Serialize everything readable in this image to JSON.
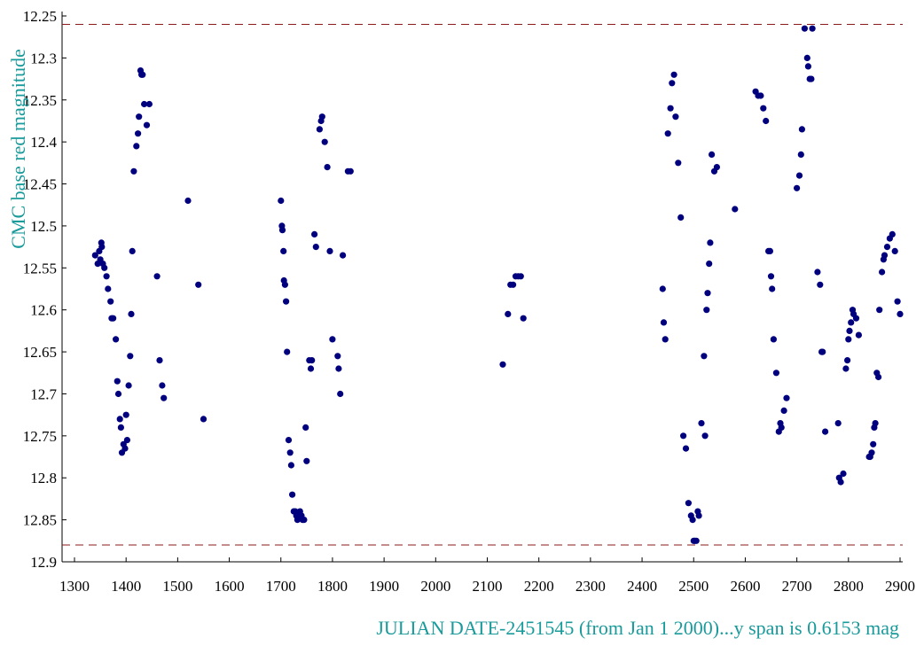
{
  "chart_data": {
    "type": "scatter",
    "title": "",
    "xlabel": "JULIAN DATE-2451545 (from Jan 1 2000)...y span is 0.6153 mag",
    "ylabel": "CMC base red magnitude",
    "xlim": [
      1300,
      2900
    ],
    "ylim": [
      12.25,
      12.9
    ],
    "y_inverted": true,
    "grid": false,
    "legend": "none",
    "x_ticks": [
      "1300",
      "1400",
      "1500",
      "1600",
      "1700",
      "1800",
      "1900",
      "2000",
      "2100",
      "2200",
      "2300",
      "2400",
      "2500",
      "2600",
      "2700",
      "2800",
      "2900"
    ],
    "y_ticks": [
      "12.25",
      "12.3",
      "12.35",
      "12.4",
      "12.45",
      "12.5",
      "12.55",
      "12.6",
      "12.65",
      "12.7",
      "12.75",
      "12.8",
      "12.85",
      "12.9"
    ],
    "reference_lines": [
      12.26,
      12.88
    ],
    "point_color": "#00007f",
    "ref_color": "#8b1a1a",
    "label_color": "#1a9a9a",
    "x": [
      1340,
      1345,
      1348,
      1350,
      1352,
      1353,
      1355,
      1358,
      1362,
      1365,
      1370,
      1372,
      1375,
      1380,
      1383,
      1385,
      1388,
      1390,
      1392,
      1395,
      1398,
      1400,
      1402,
      1405,
      1408,
      1410,
      1412,
      1415,
      1420,
      1423,
      1425,
      1428,
      1430,
      1432,
      1435,
      1440,
      1445,
      1460,
      1465,
      1470,
      1473,
      1520,
      1540,
      1550,
      1700,
      1702,
      1703,
      1705,
      1706,
      1708,
      1710,
      1712,
      1715,
      1718,
      1720,
      1722,
      1725,
      1728,
      1730,
      1732,
      1735,
      1737,
      1740,
      1742,
      1745,
      1748,
      1750,
      1755,
      1758,
      1760,
      1765,
      1768,
      1775,
      1778,
      1780,
      1785,
      1790,
      1795,
      1800,
      1810,
      1812,
      1815,
      1820,
      1830,
      1835,
      2130,
      2140,
      2145,
      2150,
      2155,
      2160,
      2165,
      2170,
      2440,
      2442,
      2445,
      2450,
      2455,
      2458,
      2462,
      2465,
      2470,
      2475,
      2480,
      2485,
      2490,
      2495,
      2498,
      2500,
      2502,
      2505,
      2508,
      2510,
      2515,
      2520,
      2522,
      2525,
      2527,
      2530,
      2532,
      2535,
      2540,
      2545,
      2580,
      2620,
      2625,
      2630,
      2635,
      2640,
      2645,
      2648,
      2650,
      2652,
      2655,
      2660,
      2665,
      2668,
      2670,
      2675,
      2680,
      2700,
      2705,
      2708,
      2710,
      2715,
      2720,
      2722,
      2725,
      2728,
      2730,
      2740,
      2745,
      2748,
      2750,
      2755,
      2780,
      2782,
      2785,
      2790,
      2795,
      2798,
      2800,
      2802,
      2805,
      2808,
      2810,
      2815,
      2820,
      2840,
      2842,
      2845,
      2848,
      2850,
      2852,
      2855,
      2858,
      2860,
      2865,
      2868,
      2870,
      2875,
      2880,
      2885,
      2890,
      2895,
      2900
    ],
    "y": [
      12.535,
      12.545,
      12.53,
      12.54,
      12.52,
      12.525,
      12.545,
      12.55,
      12.56,
      12.575,
      12.59,
      12.61,
      12.61,
      12.635,
      12.685,
      12.7,
      12.73,
      12.74,
      12.77,
      12.76,
      12.765,
      12.725,
      12.755,
      12.69,
      12.655,
      12.605,
      12.53,
      12.435,
      12.405,
      12.39,
      12.37,
      12.315,
      12.32,
      12.32,
      12.355,
      12.38,
      12.355,
      12.56,
      12.66,
      12.69,
      12.705,
      12.47,
      12.57,
      12.73,
      12.47,
      12.5,
      12.505,
      12.53,
      12.565,
      12.57,
      12.59,
      12.65,
      12.755,
      12.77,
      12.785,
      12.82,
      12.84,
      12.84,
      12.845,
      12.85,
      12.845,
      12.84,
      12.845,
      12.85,
      12.85,
      12.74,
      12.78,
      12.66,
      12.67,
      12.66,
      12.51,
      12.525,
      12.385,
      12.375,
      12.37,
      12.4,
      12.43,
      12.53,
      12.635,
      12.655,
      12.67,
      12.7,
      12.535,
      12.435,
      12.435,
      12.665,
      12.605,
      12.57,
      12.57,
      12.56,
      12.56,
      12.56,
      12.61,
      12.575,
      12.615,
      12.635,
      12.39,
      12.36,
      12.33,
      12.32,
      12.37,
      12.425,
      12.49,
      12.75,
      12.765,
      12.83,
      12.845,
      12.85,
      12.875,
      12.875,
      12.875,
      12.84,
      12.845,
      12.735,
      12.655,
      12.75,
      12.6,
      12.58,
      12.545,
      12.52,
      12.415,
      12.435,
      12.43,
      12.48,
      12.34,
      12.345,
      12.345,
      12.36,
      12.375,
      12.53,
      12.53,
      12.56,
      12.575,
      12.635,
      12.675,
      12.745,
      12.735,
      12.74,
      12.72,
      12.705,
      12.455,
      12.44,
      12.415,
      12.385,
      12.265,
      12.3,
      12.31,
      12.325,
      12.325,
      12.265,
      12.555,
      12.57,
      12.65,
      12.65,
      12.745,
      12.735,
      12.8,
      12.805,
      12.795,
      12.67,
      12.66,
      12.635,
      12.625,
      12.615,
      12.6,
      12.605,
      12.61,
      12.63,
      12.775,
      12.775,
      12.77,
      12.76,
      12.74,
      12.735,
      12.675,
      12.68,
      12.6,
      12.555,
      12.54,
      12.535,
      12.525,
      12.515,
      12.51,
      12.53,
      12.59,
      12.605
    ]
  }
}
